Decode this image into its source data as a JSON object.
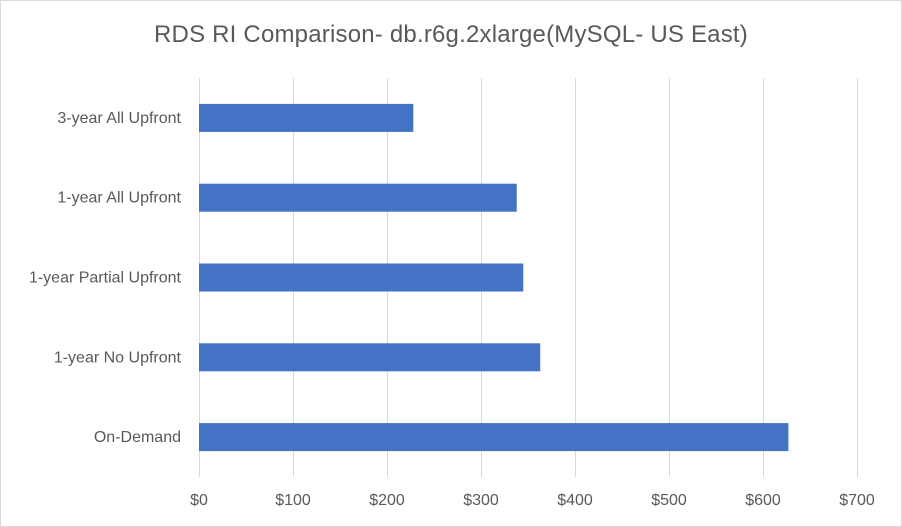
{
  "chart_data": {
    "type": "bar",
    "orientation": "horizontal",
    "title": "RDS RI Comparison- db.r6g.2xlarge(MySQL- US East)",
    "xlabel": "",
    "ylabel": "",
    "categories": [
      "3-year All Upfront",
      "1-year All Upfront",
      "1-year Partial Upfront",
      "1-year No Upfront",
      "On-Demand"
    ],
    "values": [
      228,
      338,
      345,
      363,
      627
    ],
    "xlim": [
      0,
      700
    ],
    "x_ticks": [
      0,
      100,
      200,
      300,
      400,
      500,
      600,
      700
    ],
    "x_tick_labels": [
      "$0",
      "$100",
      "$200",
      "$300",
      "$400",
      "$500",
      "$600",
      "$700"
    ],
    "grid": "vertical",
    "legend": "none",
    "bar_color": "#4472c4",
    "grid_color": "#d9d9d9"
  }
}
